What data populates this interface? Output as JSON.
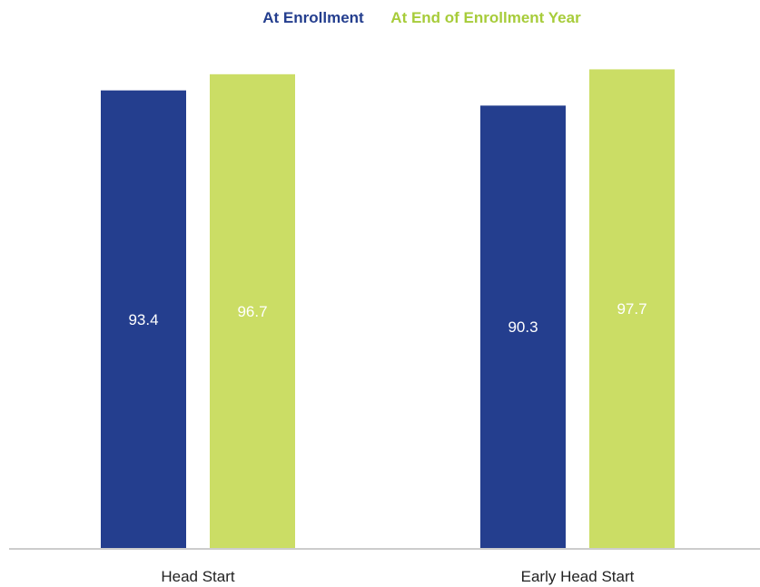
{
  "chart_data": {
    "type": "bar",
    "categories": [
      "Head Start",
      "Early Head Start"
    ],
    "series": [
      {
        "name": "At Enrollment",
        "color": "#243e8e",
        "values": [
          93.4,
          90.3
        ]
      },
      {
        "name": "At End of Enrollment Year",
        "color": "#cbdd65",
        "values": [
          96.7,
          97.7
        ]
      }
    ],
    "ylim": [
      0,
      100
    ],
    "grid": false,
    "legend_position": "top-center",
    "data_labels": [
      "93.4",
      "96.7",
      "90.3",
      "97.7"
    ]
  },
  "colors": {
    "axis": "#cccccc",
    "category_text": "#222222",
    "value_text": "#ffffff"
  }
}
